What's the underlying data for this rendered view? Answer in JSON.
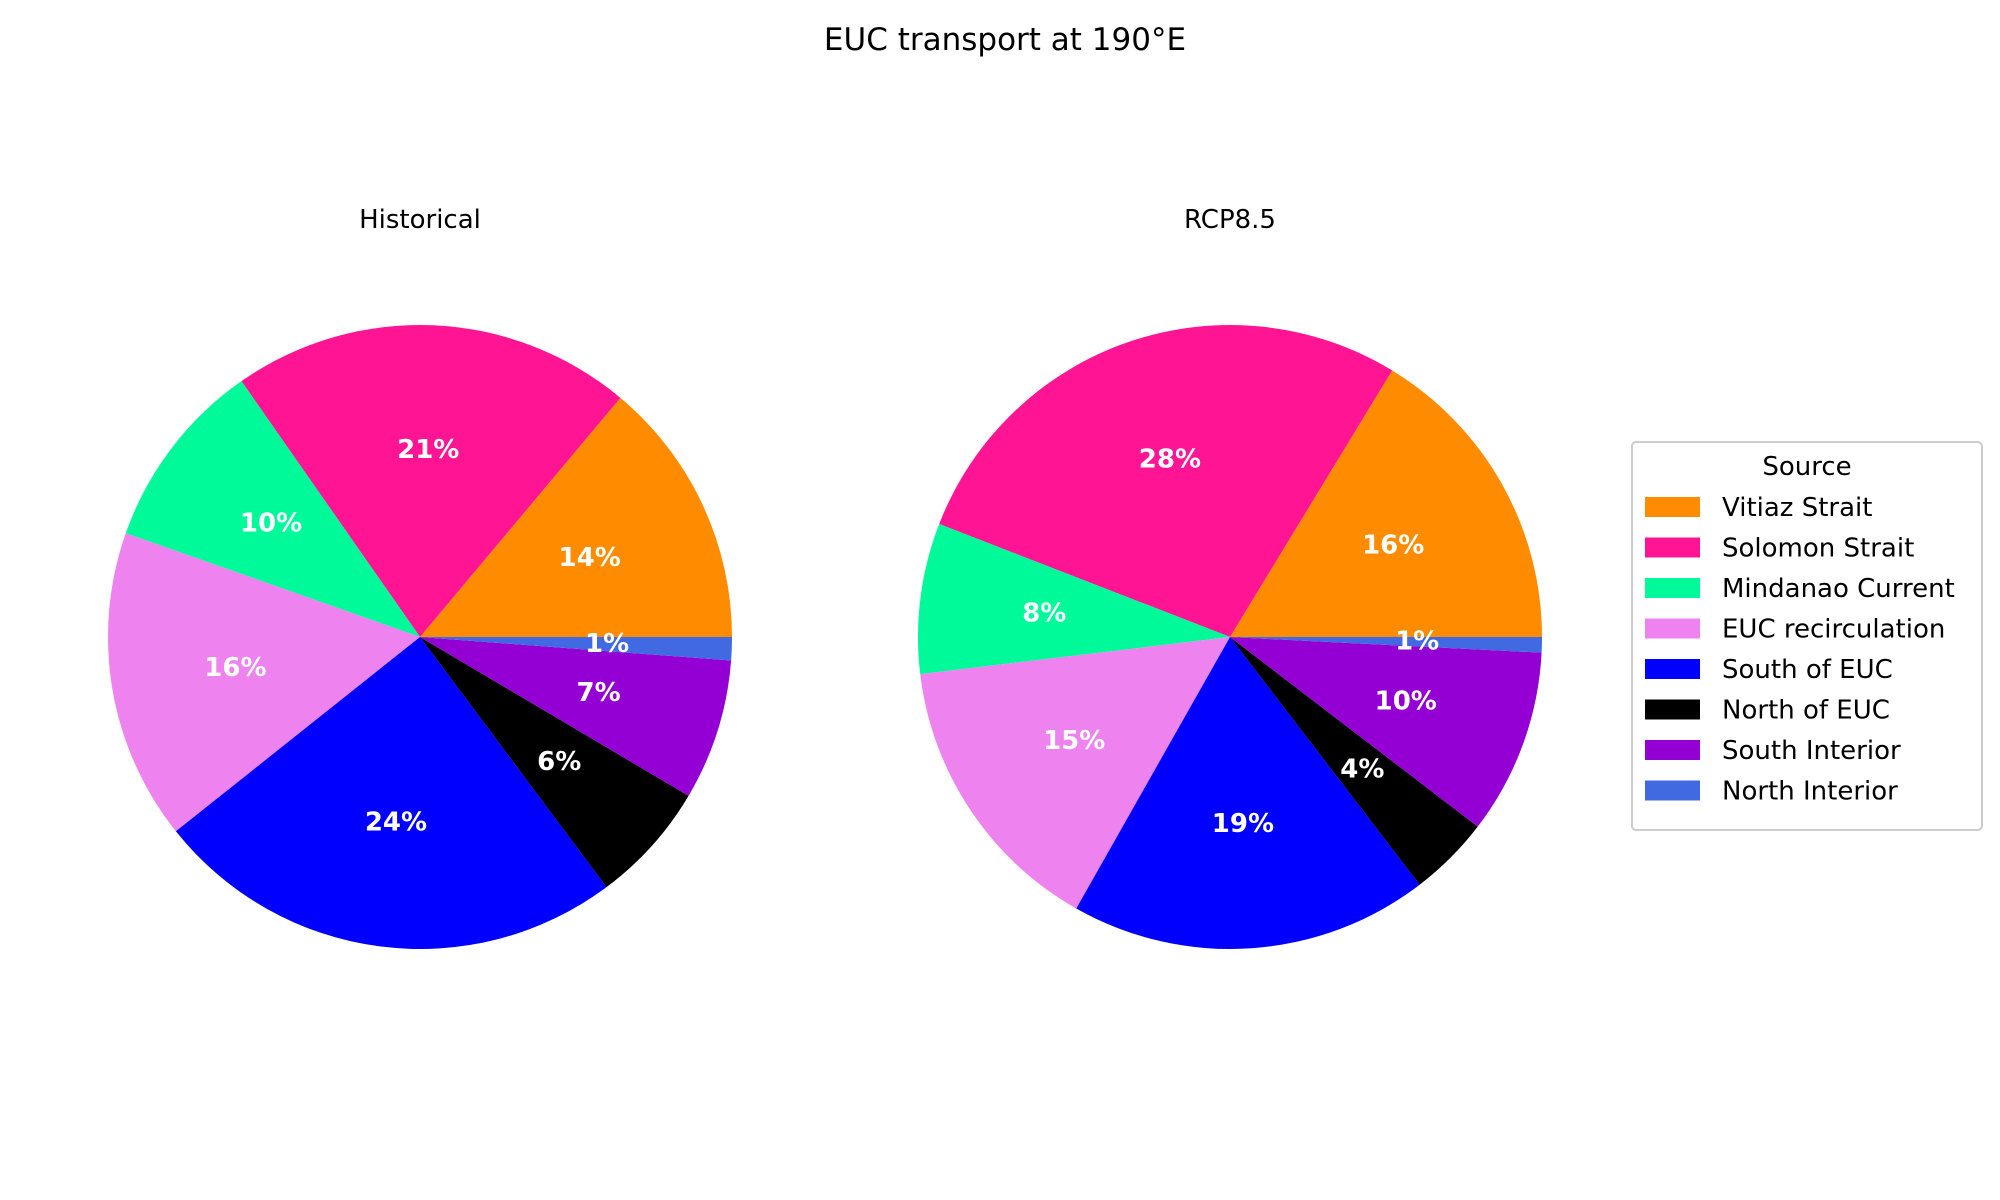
{
  "chart_data": {
    "type": "pie",
    "title": "EUC transport at 190°E",
    "legend": {
      "title": "Source",
      "placement": "right"
    },
    "categories": [
      "Vitiaz Strait",
      "Solomon Strait",
      "Mindanao Current",
      "EUC recirculation",
      "South of EUC",
      "North of EUC",
      "South Interior",
      "North Interior"
    ],
    "colors": [
      "#ff8c00",
      "#ff1493",
      "#00fa9a",
      "#ee82ee",
      "#0000ff",
      "#000000",
      "#9400d3",
      "#4169e1"
    ],
    "series": [
      {
        "name": "Historical",
        "values": [
          13.9,
          20.8,
          9.9,
          16.1,
          24.5,
          6.3,
          7.3,
          1.2
        ],
        "labels": [
          "14%",
          "21%",
          "10%",
          "16%",
          "24%",
          "6%",
          "7%",
          "1%"
        ]
      },
      {
        "name": "RCP8.5",
        "values": [
          16.3,
          27.8,
          7.8,
          14.9,
          18.6,
          4.2,
          9.6,
          0.8
        ],
        "labels": [
          "16%",
          "28%",
          "8%",
          "15%",
          "19%",
          "4%",
          "10%",
          "1%"
        ]
      }
    ]
  }
}
